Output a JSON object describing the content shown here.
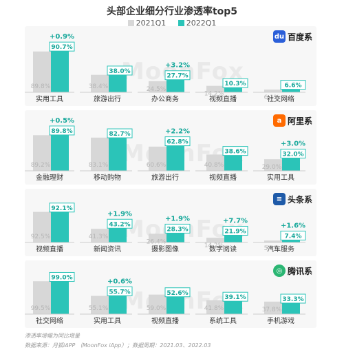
{
  "title": "头部企业细分行业渗透率top5",
  "legend": {
    "y2021": "2021Q1",
    "y2022": "2022Q1"
  },
  "colors": {
    "y2021": "#d7d7d7",
    "y2022": "#2bc4b8",
    "label2021": "#b5b5b5",
    "delta": "#17a89b",
    "baidu": "#2b5fd9",
    "ali": "#ff6a00",
    "toutiao": "#1e5aa8",
    "tencent": "#2bb673"
  },
  "watermark": "MoonFox",
  "panels": [
    {
      "brand": "百度系",
      "logo_icon": "paw-icon",
      "cats": [
        "实用工具",
        "旅游出行",
        "办公商务",
        "视频直播",
        "社交网络"
      ],
      "v21": [
        89.8,
        38.4,
        24.5,
        14.2,
        6.1
      ],
      "v22": [
        90.7,
        38.0,
        27.7,
        10.3,
        6.6
      ],
      "v21_text": [
        "89.8%",
        "38.4%",
        "24.5%",
        "14.2%",
        "6.1%"
      ],
      "v22_text": [
        "90.7%",
        "38.0%",
        "27.7%",
        "10.3%",
        "6.6%"
      ],
      "delta_text": [
        "+0.9%",
        "",
        "+3.2%",
        "",
        ""
      ]
    },
    {
      "brand": "阿里系",
      "logo_icon": "ali-icon",
      "cats": [
        "金融理财",
        "移动购物",
        "旅游出行",
        "视频直播",
        "实用工具"
      ],
      "v21": [
        89.2,
        83.1,
        60.6,
        40.8,
        29.0
      ],
      "v22": [
        89.8,
        82.7,
        62.8,
        38.6,
        32.0
      ],
      "v21_text": [
        "89.2%",
        "83.1%",
        "60.6%",
        "40.8%",
        "29.0%"
      ],
      "v22_text": [
        "89.8%",
        "82.7%",
        "62.8%",
        "38.6%",
        "32.0%"
      ],
      "delta_text": [
        "+0.5%",
        "",
        "+2.2%",
        "",
        "+3.0%"
      ]
    },
    {
      "brand": "头条系",
      "logo_icon": "toutiao-icon",
      "cats": [
        "视频直播",
        "新闻资讯",
        "摄影图像",
        "数字阅读",
        "汽车服务"
      ],
      "v21": [
        92.5,
        41.3,
        26.4,
        14.2,
        5.8
      ],
      "v22": [
        92.1,
        43.2,
        28.3,
        21.9,
        7.4
      ],
      "v21_text": [
        "92.5%",
        "41.3%",
        "26.4%",
        "14.2%",
        "5.8%"
      ],
      "v22_text": [
        "92.1%",
        "43.2%",
        "28.3%",
        "21.9%",
        "7.4%"
      ],
      "delta_text": [
        "",
        "+1.9%",
        "+1.9%",
        "+7.7%",
        "+1.6%"
      ]
    },
    {
      "brand": "腾讯系",
      "logo_icon": "tencent-icon",
      "cats": [
        "社交网络",
        "实用工具",
        "视频直播",
        "系统工具",
        "手机游戏"
      ],
      "v21": [
        99.5,
        55.1,
        59.0,
        41.8,
        37.8
      ],
      "v22": [
        99.0,
        55.7,
        52.6,
        39.1,
        33.3
      ],
      "v21_text": [
        "99.5%",
        "55.1%",
        "59.0%",
        "41.8%",
        "37.8%"
      ],
      "v22_text": [
        "99.0%",
        "55.7%",
        "52.6%",
        "39.1%",
        "33.3%"
      ],
      "delta_text": [
        "",
        "+0.6%",
        "",
        "",
        ""
      ]
    }
  ],
  "footer": {
    "note": "渗透率增幅为同比增量",
    "source": "数据来源：月狐iAPP （MoonFox iApp）；数据周期：2021.03、2022.03"
  },
  "chart_data": [
    {
      "type": "bar",
      "title": "百度系",
      "categories": [
        "实用工具",
        "旅游出行",
        "办公商务",
        "视频直播",
        "社交网络"
      ],
      "series": [
        {
          "name": "2021Q1",
          "values": [
            89.8,
            38.4,
            24.5,
            14.2,
            6.1
          ]
        },
        {
          "name": "2022Q1",
          "values": [
            90.7,
            38.0,
            27.7,
            10.3,
            6.6
          ]
        }
      ]
    },
    {
      "type": "bar",
      "title": "阿里系",
      "categories": [
        "金融理财",
        "移动购物",
        "旅游出行",
        "视频直播",
        "实用工具"
      ],
      "series": [
        {
          "name": "2021Q1",
          "values": [
            89.2,
            83.1,
            60.6,
            40.8,
            29.0
          ]
        },
        {
          "name": "2022Q1",
          "values": [
            89.8,
            82.7,
            62.8,
            38.6,
            32.0
          ]
        }
      ]
    },
    {
      "type": "bar",
      "title": "头条系",
      "categories": [
        "视频直播",
        "新闻资讯",
        "摄影图像",
        "数字阅读",
        "汽车服务"
      ],
      "series": [
        {
          "name": "2021Q1",
          "values": [
            92.5,
            41.3,
            26.4,
            14.2,
            5.8
          ]
        },
        {
          "name": "2022Q1",
          "values": [
            92.1,
            43.2,
            28.3,
            21.9,
            7.4
          ]
        }
      ]
    },
    {
      "type": "bar",
      "title": "腾讯系",
      "categories": [
        "社交网络",
        "实用工具",
        "视频直播",
        "系统工具",
        "手机游戏"
      ],
      "series": [
        {
          "name": "2021Q1",
          "values": [
            99.5,
            55.1,
            59.0,
            41.8,
            37.8
          ]
        },
        {
          "name": "2022Q1",
          "values": [
            99.0,
            55.7,
            52.6,
            39.1,
            33.3
          ]
        }
      ]
    }
  ]
}
